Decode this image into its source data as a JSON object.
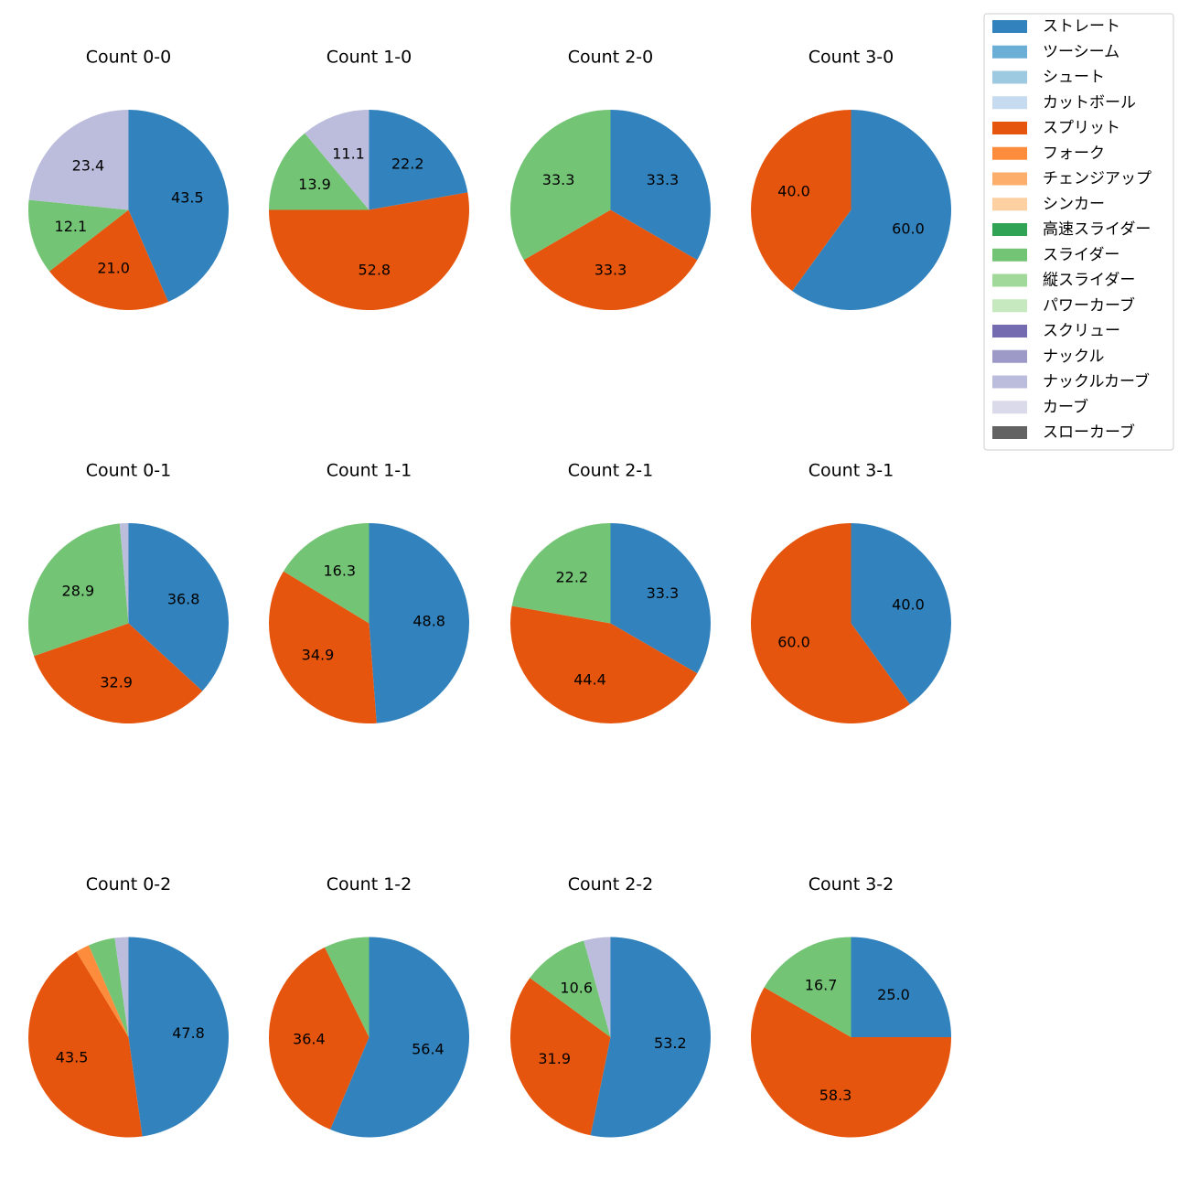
{
  "colors": {
    "ストレート": "#3182bd",
    "ツーシーム": "#6baed6",
    "シュート": "#9ecae1",
    "カットボール": "#c6dbef",
    "スプリット": "#e6550d",
    "フォーク": "#fd8d3c",
    "チェンジアップ": "#fdae6b",
    "シンカー": "#fdd0a2",
    "高速スライダー": "#31a354",
    "スライダー": "#74c476",
    "縦スライダー": "#a1d99b",
    "パワーカーブ": "#c7e9c0",
    "スクリュー": "#756bb1",
    "ナックル": "#9e9ac8",
    "ナックルカーブ": "#bcbddc",
    "カーブ": "#dadaeb",
    "スローカーブ": "#636363"
  },
  "legend": [
    "ストレート",
    "ツーシーム",
    "シュート",
    "カットボール",
    "スプリット",
    "フォーク",
    "チェンジアップ",
    "シンカー",
    "高速スライダー",
    "スライダー",
    "縦スライダー",
    "パワーカーブ",
    "スクリュー",
    "ナックル",
    "ナックルカーブ",
    "カーブ",
    "スローカーブ"
  ],
  "chart_data": [
    {
      "type": "pie",
      "title": "Count 0-0",
      "slices": [
        {
          "pitch": "ストレート",
          "value": 43.5,
          "label": "43.5"
        },
        {
          "pitch": "スプリット",
          "value": 21.0,
          "label": "21.0"
        },
        {
          "pitch": "スライダー",
          "value": 12.1,
          "label": "12.1"
        },
        {
          "pitch": "ナックルカーブ",
          "value": 23.4,
          "label": "23.4"
        }
      ]
    },
    {
      "type": "pie",
      "title": "Count 1-0",
      "slices": [
        {
          "pitch": "ストレート",
          "value": 22.2,
          "label": "22.2"
        },
        {
          "pitch": "スプリット",
          "value": 52.8,
          "label": "52.8"
        },
        {
          "pitch": "スライダー",
          "value": 13.9,
          "label": "13.9"
        },
        {
          "pitch": "ナックルカーブ",
          "value": 11.1,
          "label": "11.1"
        }
      ]
    },
    {
      "type": "pie",
      "title": "Count 2-0",
      "slices": [
        {
          "pitch": "ストレート",
          "value": 33.3,
          "label": "33.3"
        },
        {
          "pitch": "スプリット",
          "value": 33.3,
          "label": "33.3"
        },
        {
          "pitch": "スライダー",
          "value": 33.3,
          "label": "33.3"
        }
      ]
    },
    {
      "type": "pie",
      "title": "Count 3-0",
      "slices": [
        {
          "pitch": "ストレート",
          "value": 60.0,
          "label": "60.0"
        },
        {
          "pitch": "スプリット",
          "value": 40.0,
          "label": "40.0"
        }
      ]
    },
    {
      "type": "pie",
      "title": "Count 0-1",
      "slices": [
        {
          "pitch": "ストレート",
          "value": 36.8,
          "label": "36.8"
        },
        {
          "pitch": "スプリット",
          "value": 32.9,
          "label": "32.9"
        },
        {
          "pitch": "スライダー",
          "value": 28.9,
          "label": "28.9"
        },
        {
          "pitch": "ナックルカーブ",
          "value": 1.4,
          "label": ""
        }
      ]
    },
    {
      "type": "pie",
      "title": "Count 1-1",
      "slices": [
        {
          "pitch": "ストレート",
          "value": 48.8,
          "label": "48.8"
        },
        {
          "pitch": "スプリット",
          "value": 34.9,
          "label": "34.9"
        },
        {
          "pitch": "スライダー",
          "value": 16.3,
          "label": "16.3"
        }
      ]
    },
    {
      "type": "pie",
      "title": "Count 2-1",
      "slices": [
        {
          "pitch": "ストレート",
          "value": 33.3,
          "label": "33.3"
        },
        {
          "pitch": "スプリット",
          "value": 44.4,
          "label": "44.4"
        },
        {
          "pitch": "スライダー",
          "value": 22.2,
          "label": "22.2"
        }
      ]
    },
    {
      "type": "pie",
      "title": "Count 3-1",
      "slices": [
        {
          "pitch": "ストレート",
          "value": 40.0,
          "label": "40.0"
        },
        {
          "pitch": "スプリット",
          "value": 60.0,
          "label": "60.0"
        }
      ]
    },
    {
      "type": "pie",
      "title": "Count 0-2",
      "slices": [
        {
          "pitch": "ストレート",
          "value": 47.8,
          "label": "47.8"
        },
        {
          "pitch": "スプリット",
          "value": 43.5,
          "label": "43.5"
        },
        {
          "pitch": "フォーク",
          "value": 2.2,
          "label": ""
        },
        {
          "pitch": "スライダー",
          "value": 4.3,
          "label": ""
        },
        {
          "pitch": "ナックルカーブ",
          "value": 2.2,
          "label": ""
        }
      ]
    },
    {
      "type": "pie",
      "title": "Count 1-2",
      "slices": [
        {
          "pitch": "ストレート",
          "value": 56.4,
          "label": "56.4"
        },
        {
          "pitch": "スプリット",
          "value": 36.4,
          "label": "36.4"
        },
        {
          "pitch": "スライダー",
          "value": 7.3,
          "label": ""
        }
      ]
    },
    {
      "type": "pie",
      "title": "Count 2-2",
      "slices": [
        {
          "pitch": "ストレート",
          "value": 53.2,
          "label": "53.2"
        },
        {
          "pitch": "スプリット",
          "value": 31.9,
          "label": "31.9"
        },
        {
          "pitch": "スライダー",
          "value": 10.6,
          "label": "10.6"
        },
        {
          "pitch": "ナックルカーブ",
          "value": 4.3,
          "label": ""
        }
      ]
    },
    {
      "type": "pie",
      "title": "Count 3-2",
      "slices": [
        {
          "pitch": "ストレート",
          "value": 25.0,
          "label": "25.0"
        },
        {
          "pitch": "スプリット",
          "value": 58.3,
          "label": "58.3"
        },
        {
          "pitch": "スライダー",
          "value": 16.7,
          "label": "16.7"
        }
      ]
    }
  ]
}
